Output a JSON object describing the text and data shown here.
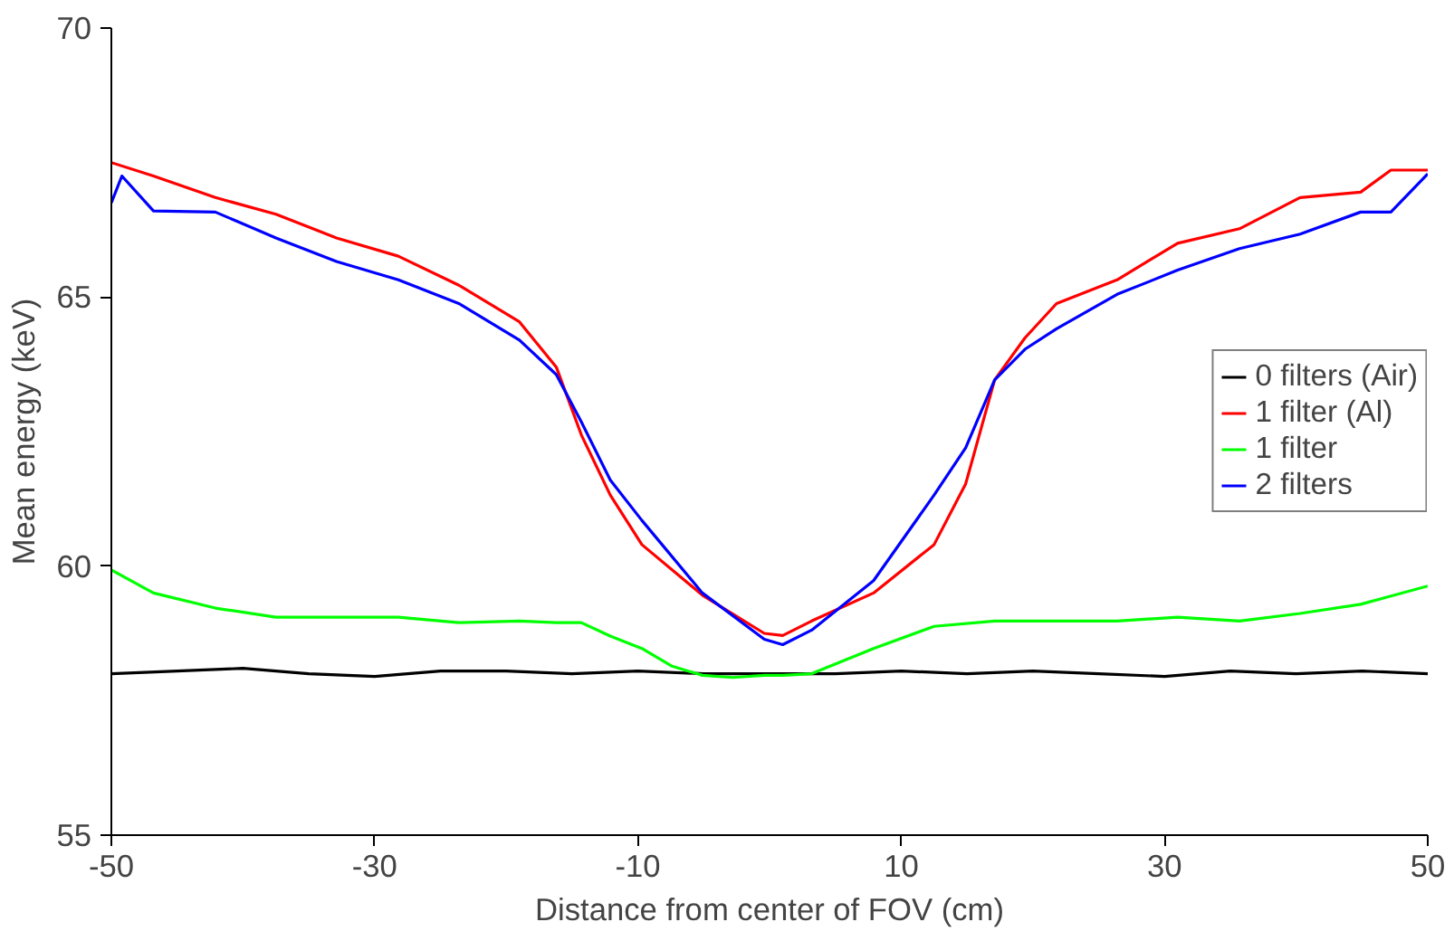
{
  "chart_data": {
    "type": "line",
    "xlabel": "Distance from center of FOV (cm)",
    "ylabel": "Mean energy (keV)",
    "xlim": [
      -50,
      50
    ],
    "ylim": [
      55,
      70
    ],
    "xticks": [
      -50,
      -30,
      -10,
      10,
      30,
      50
    ],
    "yticks": [
      55,
      60,
      65,
      70
    ],
    "grid": false,
    "legend": "right",
    "marker": "none",
    "line_style": "solid",
    "series": [
      {
        "name": "0 filters (Air)",
        "color": "#000000",
        "x": [
          -50,
          -45,
          -40,
          -35,
          -30,
          -25,
          -20,
          -15,
          -10,
          -5,
          0,
          5,
          10,
          15,
          20,
          25,
          30,
          35,
          40,
          45,
          50
        ],
        "values": [
          58.0,
          58.05,
          58.1,
          58.0,
          57.95,
          58.05,
          58.05,
          58.0,
          58.05,
          58.0,
          58.0,
          58.0,
          58.05,
          58.0,
          58.05,
          58.0,
          57.95,
          58.05,
          58.0,
          58.05,
          58.0
        ]
      },
      {
        "name": "1 filter (Al)",
        "color": "#ff0000",
        "x": [
          -50,
          -46.8,
          -42.1,
          -37.5,
          -32.9,
          -28.2,
          -23.6,
          -19.0,
          -16.2,
          -14.3,
          -12.1,
          -9.7,
          -5.1,
          -0.4,
          1.0,
          3.2,
          7.9,
          12.5,
          14.9,
          17.1,
          19.4,
          21.8,
          26.4,
          31.0,
          35.7,
          40.3,
          44.9,
          47.2,
          50
        ],
        "values": [
          67.5,
          67.25,
          66.85,
          66.54,
          66.1,
          65.76,
          65.22,
          64.54,
          63.7,
          62.44,
          61.32,
          60.4,
          59.46,
          58.75,
          58.71,
          58.98,
          59.5,
          60.4,
          61.53,
          63.46,
          64.24,
          64.88,
          65.32,
          66.0,
          66.27,
          66.85,
          66.95,
          67.36,
          67.36
        ]
      },
      {
        "name": "1 filter",
        "color": "#00ff00",
        "x": [
          -50,
          -46.8,
          -42.1,
          -37.5,
          -32.9,
          -28.2,
          -23.6,
          -19.0,
          -16.2,
          -14.3,
          -12.1,
          -9.7,
          -7.4,
          -5.1,
          -2.8,
          -0.4,
          1.0,
          3.2,
          7.9,
          12.5,
          17.1,
          21.8,
          26.4,
          31.0,
          35.7,
          40.3,
          44.9,
          50
        ],
        "values": [
          59.93,
          59.5,
          59.22,
          59.05,
          59.05,
          59.05,
          58.95,
          58.98,
          58.95,
          58.95,
          58.7,
          58.47,
          58.14,
          57.97,
          57.93,
          57.97,
          57.97,
          58.0,
          58.47,
          58.88,
          58.98,
          58.98,
          58.98,
          59.05,
          58.98,
          59.12,
          59.29,
          59.63
        ]
      },
      {
        "name": "2 filters",
        "color": "#0000ff",
        "x": [
          -50,
          -49.2,
          -46.8,
          -42.1,
          -37.5,
          -32.9,
          -28.2,
          -23.6,
          -19.0,
          -16.2,
          -14.3,
          -12.1,
          -9.7,
          -5.1,
          -0.4,
          1.0,
          3.2,
          7.9,
          12.5,
          14.9,
          17.1,
          19.4,
          21.8,
          26.4,
          31.0,
          35.7,
          40.3,
          44.9,
          47.2,
          50
        ],
        "values": [
          66.75,
          67.25,
          66.6,
          66.58,
          66.1,
          65.66,
          65.32,
          64.88,
          64.2,
          63.56,
          62.68,
          61.6,
          60.85,
          59.5,
          58.64,
          58.54,
          58.81,
          59.73,
          61.32,
          62.2,
          63.46,
          64.03,
          64.41,
          65.05,
          65.5,
          65.9,
          66.17,
          66.58,
          66.58,
          67.29
        ]
      }
    ]
  }
}
